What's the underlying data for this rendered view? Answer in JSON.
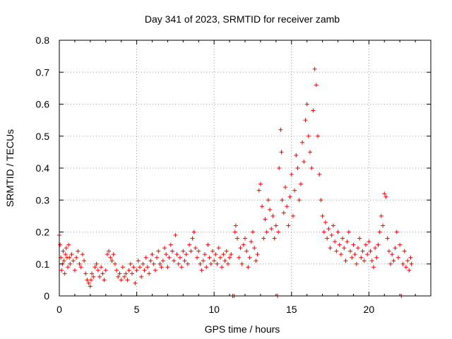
{
  "chart_data": {
    "type": "scatter",
    "title": "Day 341 of 2023, SRMTID for receiver zamb",
    "xlabel": "GPS time / hours",
    "ylabel": "SRMTID / TECUs",
    "xlim": [
      0,
      24
    ],
    "ylim": [
      0,
      0.8
    ],
    "xticks": [
      0,
      5,
      10,
      15,
      20
    ],
    "yticks": [
      0,
      0.1,
      0.2,
      0.3,
      0.4,
      0.5,
      0.6,
      0.7,
      0.8
    ],
    "xtick_labels": [
      "0",
      "5",
      "10",
      "15",
      "20"
    ],
    "ytick_labels": [
      "0",
      "0.1",
      "0.2",
      "0.3",
      "0.4",
      "0.5",
      "0.6",
      "0.7",
      "0.8"
    ],
    "grid": true,
    "marker": "+",
    "color": "#ff0000",
    "series": [
      {
        "name": "SRMTID",
        "points": [
          [
            0.0,
            0.19
          ],
          [
            0.05,
            0.16
          ],
          [
            0.1,
            0.12
          ],
          [
            0.15,
            0.08
          ],
          [
            0.2,
            0.1
          ],
          [
            0.25,
            0.14
          ],
          [
            0.3,
            0.11
          ],
          [
            0.35,
            0.07
          ],
          [
            0.4,
            0.13
          ],
          [
            0.45,
            0.15
          ],
          [
            0.5,
            0.12
          ],
          [
            0.55,
            0.09
          ],
          [
            0.6,
            0.16
          ],
          [
            0.65,
            0.12
          ],
          [
            0.7,
            0.1
          ],
          [
            0.8,
            0.13
          ],
          [
            0.9,
            0.11
          ],
          [
            1.0,
            0.08
          ],
          [
            1.1,
            0.12
          ],
          [
            1.2,
            0.14
          ],
          [
            1.3,
            0.1
          ],
          [
            1.4,
            0.09
          ],
          [
            1.5,
            0.13
          ],
          [
            1.6,
            0.11
          ],
          [
            1.7,
            0.07
          ],
          [
            1.8,
            0.05
          ],
          [
            1.9,
            0.04
          ],
          [
            2.0,
            0.03
          ],
          [
            2.05,
            0.05
          ],
          [
            2.1,
            0.07
          ],
          [
            2.2,
            0.06
          ],
          [
            2.3,
            0.09
          ],
          [
            2.4,
            0.1
          ],
          [
            2.5,
            0.08
          ],
          [
            2.6,
            0.06
          ],
          [
            2.7,
            0.09
          ],
          [
            2.8,
            0.07
          ],
          [
            2.9,
            0.05
          ],
          [
            3.0,
            0.08
          ],
          [
            3.1,
            0.13
          ],
          [
            3.2,
            0.14
          ],
          [
            3.3,
            0.12
          ],
          [
            3.4,
            0.11
          ],
          [
            3.5,
            0.13
          ],
          [
            3.6,
            0.1
          ],
          [
            3.7,
            0.08
          ],
          [
            3.8,
            0.06
          ],
          [
            3.9,
            0.07
          ],
          [
            4.0,
            0.05
          ],
          [
            4.1,
            0.09
          ],
          [
            4.2,
            0.06
          ],
          [
            4.3,
            0.07
          ],
          [
            4.4,
            0.05
          ],
          [
            4.5,
            0.08
          ],
          [
            4.6,
            0.1
          ],
          [
            4.7,
            0.07
          ],
          [
            4.8,
            0.09
          ],
          [
            4.9,
            0.04
          ],
          [
            5.0,
            0.08
          ],
          [
            5.1,
            0.11
          ],
          [
            5.2,
            0.09
          ],
          [
            5.3,
            0.06
          ],
          [
            5.4,
            0.1
          ],
          [
            5.5,
            0.08
          ],
          [
            5.6,
            0.12
          ],
          [
            5.7,
            0.09
          ],
          [
            5.8,
            0.07
          ],
          [
            5.9,
            0.11
          ],
          [
            6.0,
            0.13
          ],
          [
            6.1,
            0.1
          ],
          [
            6.2,
            0.08
          ],
          [
            6.3,
            0.12
          ],
          [
            6.4,
            0.14
          ],
          [
            6.5,
            0.1
          ],
          [
            6.6,
            0.09
          ],
          [
            6.7,
            0.11
          ],
          [
            6.8,
            0.15
          ],
          [
            6.9,
            0.13
          ],
          [
            7.0,
            0.09
          ],
          [
            7.1,
            0.12
          ],
          [
            7.2,
            0.16
          ],
          [
            7.3,
            0.14
          ],
          [
            7.4,
            0.11
          ],
          [
            7.5,
            0.19
          ],
          [
            7.6,
            0.13
          ],
          [
            7.7,
            0.1
          ],
          [
            7.8,
            0.12
          ],
          [
            7.9,
            0.09
          ],
          [
            8.0,
            0.14
          ],
          [
            8.1,
            0.11
          ],
          [
            8.2,
            0.13
          ],
          [
            8.3,
            0.1
          ],
          [
            8.4,
            0.16
          ],
          [
            8.5,
            0.14
          ],
          [
            8.6,
            0.18
          ],
          [
            8.7,
            0.2
          ],
          [
            8.8,
            0.15
          ],
          [
            8.9,
            0.12
          ],
          [
            9.0,
            0.14
          ],
          [
            9.1,
            0.1
          ],
          [
            9.2,
            0.08
          ],
          [
            9.3,
            0.11
          ],
          [
            9.4,
            0.13
          ],
          [
            9.5,
            0.09
          ],
          [
            9.6,
            0.16
          ],
          [
            9.7,
            0.12
          ],
          [
            9.8,
            0.1
          ],
          [
            9.9,
            0.14
          ],
          [
            10.0,
            0.11
          ],
          [
            10.1,
            0.13
          ],
          [
            10.2,
            0.1
          ],
          [
            10.3,
            0.15
          ],
          [
            10.4,
            0.12
          ],
          [
            10.5,
            0.09
          ],
          [
            10.6,
            0.13
          ],
          [
            10.7,
            0.11
          ],
          [
            10.8,
            0.14
          ],
          [
            10.9,
            0.1
          ],
          [
            11.0,
            0.12
          ],
          [
            11.1,
            0.13
          ],
          [
            11.2,
            0.0
          ],
          [
            11.3,
            0.0
          ],
          [
            11.35,
            0.2
          ],
          [
            11.4,
            0.22
          ],
          [
            11.5,
            0.18
          ],
          [
            11.6,
            0.12
          ],
          [
            11.7,
            0.15
          ],
          [
            11.8,
            0.1
          ],
          [
            11.9,
            0.16
          ],
          [
            12.0,
            0.18
          ],
          [
            12.1,
            0.14
          ],
          [
            12.2,
            0.09
          ],
          [
            12.3,
            0.12
          ],
          [
            12.4,
            0.17
          ],
          [
            12.5,
            0.2
          ],
          [
            12.6,
            0.15
          ],
          [
            12.7,
            0.11
          ],
          [
            12.8,
            0.13
          ],
          [
            12.9,
            0.33
          ],
          [
            13.0,
            0.35
          ],
          [
            13.1,
            0.28
          ],
          [
            13.2,
            0.18
          ],
          [
            13.3,
            0.24
          ],
          [
            13.4,
            0.2
          ],
          [
            13.5,
            0.3
          ],
          [
            13.6,
            0.27
          ],
          [
            13.7,
            0.21
          ],
          [
            13.8,
            0.25
          ],
          [
            13.9,
            0.18
          ],
          [
            14.0,
            0.22
          ],
          [
            14.1,
            0.0
          ],
          [
            14.15,
            0.2
          ],
          [
            14.2,
            0.4
          ],
          [
            14.3,
            0.52
          ],
          [
            14.35,
            0.45
          ],
          [
            14.4,
            0.3
          ],
          [
            14.5,
            0.26
          ],
          [
            14.6,
            0.34
          ],
          [
            14.7,
            0.28
          ],
          [
            14.8,
            0.22
          ],
          [
            14.9,
            0.31
          ],
          [
            15.0,
            0.38
          ],
          [
            15.1,
            0.25
          ],
          [
            15.2,
            0.33
          ],
          [
            15.3,
            0.44
          ],
          [
            15.4,
            0.4
          ],
          [
            15.5,
            0.3
          ],
          [
            15.6,
            0.35
          ],
          [
            15.7,
            0.48
          ],
          [
            15.8,
            0.42
          ],
          [
            15.9,
            0.55
          ],
          [
            16.0,
            0.6
          ],
          [
            16.1,
            0.5
          ],
          [
            16.2,
            0.45
          ],
          [
            16.3,
            0.4
          ],
          [
            16.4,
            0.58
          ],
          [
            16.5,
            0.71
          ],
          [
            16.6,
            0.66
          ],
          [
            16.7,
            0.5
          ],
          [
            16.8,
            0.38
          ],
          [
            16.9,
            0.3
          ],
          [
            17.0,
            0.25
          ],
          [
            17.1,
            0.2
          ],
          [
            17.2,
            0.23
          ],
          [
            17.3,
            0.18
          ],
          [
            17.4,
            0.21
          ],
          [
            17.5,
            0.15
          ],
          [
            17.6,
            0.19
          ],
          [
            17.7,
            0.22
          ],
          [
            17.8,
            0.17
          ],
          [
            17.9,
            0.14
          ],
          [
            18.0,
            0.2
          ],
          [
            18.1,
            0.16
          ],
          [
            18.2,
            0.13
          ],
          [
            18.3,
            0.18
          ],
          [
            18.4,
            0.15
          ],
          [
            18.5,
            0.11
          ],
          [
            18.6,
            0.17
          ],
          [
            18.7,
            0.2
          ],
          [
            18.8,
            0.14
          ],
          [
            18.9,
            0.12
          ],
          [
            19.0,
            0.16
          ],
          [
            19.1,
            0.13
          ],
          [
            19.2,
            0.1
          ],
          [
            19.3,
            0.15
          ],
          [
            19.4,
            0.18
          ],
          [
            19.5,
            0.12
          ],
          [
            19.6,
            0.14
          ],
          [
            19.7,
            0.11
          ],
          [
            19.8,
            0.16
          ],
          [
            19.9,
            0.13
          ],
          [
            20.0,
            0.17
          ],
          [
            20.1,
            0.14
          ],
          [
            20.2,
            0.11
          ],
          [
            20.3,
            0.09
          ],
          [
            20.4,
            0.15
          ],
          [
            20.5,
            0.12
          ],
          [
            20.6,
            0.16
          ],
          [
            20.7,
            0.2
          ],
          [
            20.8,
            0.25
          ],
          [
            20.9,
            0.22
          ],
          [
            21.0,
            0.32
          ],
          [
            21.1,
            0.31
          ],
          [
            21.2,
            0.18
          ],
          [
            21.3,
            0.14
          ],
          [
            21.4,
            0.1
          ],
          [
            21.5,
            0.13
          ],
          [
            21.6,
            0.11
          ],
          [
            21.7,
            0.15
          ],
          [
            21.8,
            0.2
          ],
          [
            21.9,
            0.12
          ],
          [
            22.0,
            0.16
          ],
          [
            22.1,
            0.0
          ],
          [
            22.2,
            0.1
          ],
          [
            22.3,
            0.14
          ],
          [
            22.4,
            0.09
          ],
          [
            22.5,
            0.11
          ],
          [
            22.6,
            0.08
          ],
          [
            22.7,
            0.12
          ],
          [
            22.75,
            0.1
          ]
        ]
      }
    ]
  }
}
